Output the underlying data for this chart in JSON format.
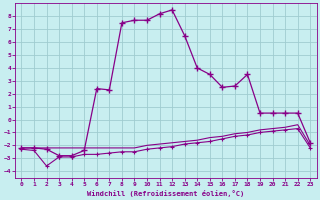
{
  "xlabel": "Windchill (Refroidissement éolien,°C)",
  "background_color": "#c8eef0",
  "grid_color": "#a0ccd0",
  "line_color": "#880088",
  "xlim": [
    -0.5,
    23.5
  ],
  "ylim": [
    -4.5,
    9.0
  ],
  "xticks": [
    0,
    1,
    2,
    3,
    4,
    5,
    6,
    7,
    8,
    9,
    10,
    11,
    12,
    13,
    14,
    15,
    16,
    17,
    18,
    19,
    20,
    21,
    22,
    23
  ],
  "yticks": [
    -4,
    -3,
    -2,
    -1,
    0,
    1,
    2,
    3,
    4,
    5,
    6,
    7,
    8
  ],
  "line1_x": [
    0,
    1,
    2,
    3,
    4,
    5,
    6,
    7,
    8,
    9,
    10,
    11,
    12,
    13,
    14,
    15,
    16,
    17,
    18,
    19,
    20,
    21,
    22,
    23
  ],
  "line1_y": [
    -2.2,
    -2.2,
    -2.2,
    -2.2,
    -2.2,
    -2.2,
    -2.2,
    -2.2,
    -2.2,
    -2.2,
    -2.0,
    -1.9,
    -1.8,
    -1.7,
    -1.6,
    -1.4,
    -1.3,
    -1.1,
    -1.0,
    -0.8,
    -0.7,
    -0.6,
    -0.4,
    -2.0
  ],
  "line2_x": [
    0,
    1,
    2,
    3,
    4,
    5,
    6,
    7,
    8,
    9,
    10,
    11,
    12,
    13,
    14,
    15,
    16,
    17,
    18,
    19,
    20,
    21,
    22,
    23
  ],
  "line2_y": [
    -2.3,
    -2.4,
    -3.6,
    -2.9,
    -2.9,
    -2.7,
    -2.7,
    -2.6,
    -2.5,
    -2.5,
    -2.3,
    -2.2,
    -2.1,
    -1.9,
    -1.8,
    -1.7,
    -1.5,
    -1.3,
    -1.2,
    -1.0,
    -0.9,
    -0.8,
    -0.7,
    -2.2
  ],
  "curve_x": [
    0,
    1,
    2,
    3,
    4,
    5,
    6,
    7,
    8,
    9,
    10,
    11,
    12,
    13,
    14,
    15,
    16,
    17,
    18,
    19,
    20,
    21,
    22,
    23
  ],
  "curve_y": [
    -2.2,
    -2.2,
    -2.3,
    -2.8,
    -2.8,
    -2.4,
    2.4,
    2.3,
    7.5,
    7.7,
    7.7,
    8.2,
    8.5,
    6.5,
    4.0,
    3.5,
    2.5,
    2.6,
    3.5,
    0.5,
    0.5,
    0.5,
    0.5,
    -1.8
  ]
}
